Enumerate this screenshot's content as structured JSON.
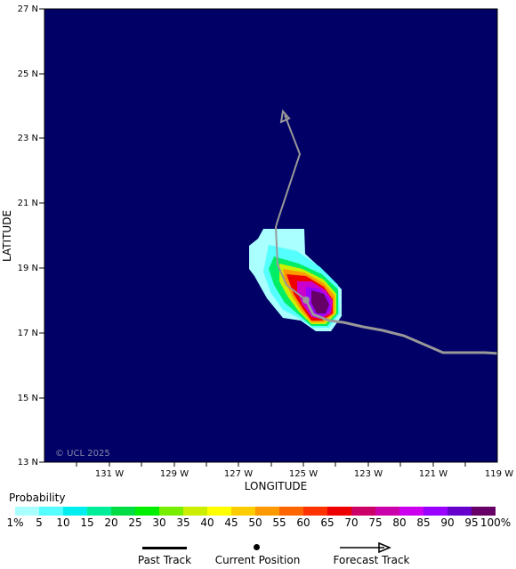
{
  "map": {
    "y_axis_title": "LATITUDE",
    "x_axis_title": "LONGITUDE",
    "lat_labels": [
      "27 N",
      "25 N",
      "23 N",
      "21 N",
      "19 N",
      "17 N",
      "15 N",
      "13 N"
    ],
    "lon_labels": [
      "131 W",
      "129 W",
      "127 W",
      "125 W",
      "123 W",
      "121 W",
      "119 W"
    ],
    "watermark": "© UCL 2025",
    "background_color": "#000066",
    "track_color": "#999999"
  },
  "legend": {
    "title": "Probability",
    "ticks": [
      "1%",
      "5",
      "10",
      "15",
      "20",
      "25",
      "30",
      "35",
      "40",
      "45",
      "50",
      "55",
      "60",
      "65",
      "70",
      "75",
      "80",
      "85",
      "90",
      "95",
      "100%"
    ],
    "colors": [
      "#aaffff",
      "#55ffff",
      "#00eeee",
      "#00ee99",
      "#00dd44",
      "#00ee00",
      "#77ee00",
      "#ccee00",
      "#ffff00",
      "#ffcc00",
      "#ff9900",
      "#ff6600",
      "#ff3300",
      "#ee0000",
      "#cc0066",
      "#cc00aa",
      "#cc00ee",
      "#9900ff",
      "#6600cc",
      "#660066"
    ],
    "past_track_label": "Past Track",
    "current_position_label": "Current Position",
    "forecast_track_label": "Forecast Track"
  }
}
